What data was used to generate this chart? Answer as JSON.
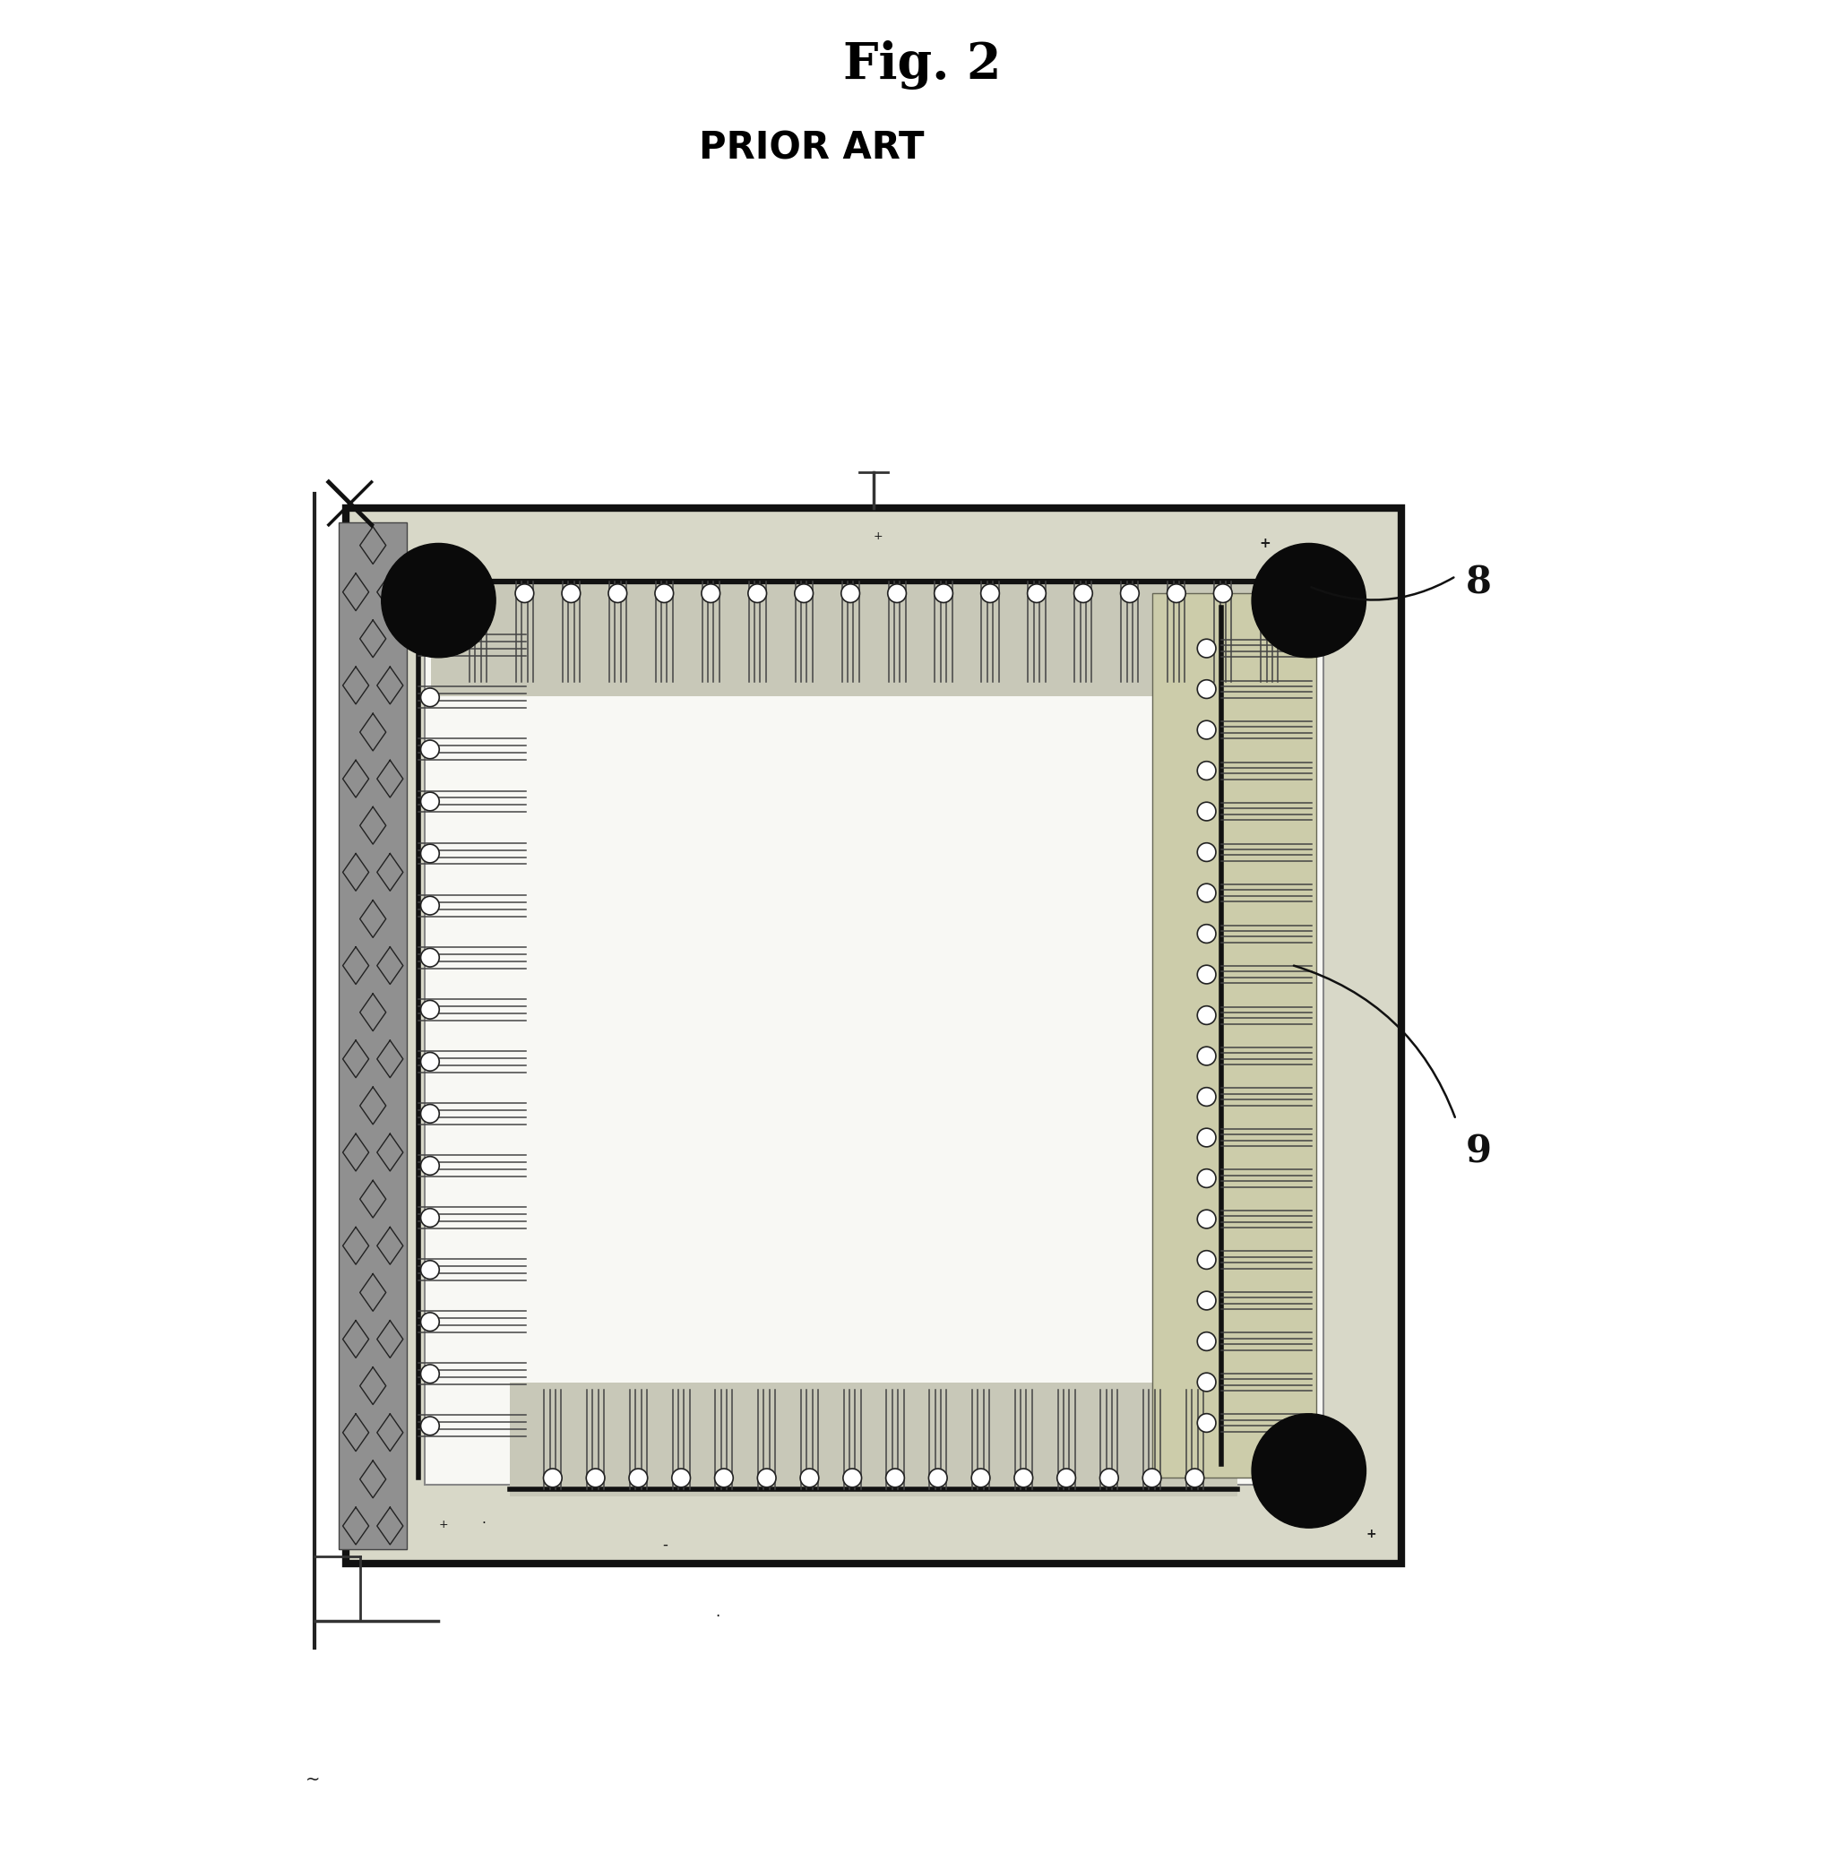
{
  "title": "Fig. 2",
  "subtitle": "PRIOR ART",
  "bg_color": "#ffffff",
  "label_8": "8",
  "label_9": "9",
  "fig_width": 20.58,
  "fig_height": 20.68,
  "frame_color": "#111111",
  "frame_bg": "#d8d8c8",
  "inner_bg": "#f8f8f4",
  "hatch_color": "#222222",
  "lead_color": "#333333"
}
